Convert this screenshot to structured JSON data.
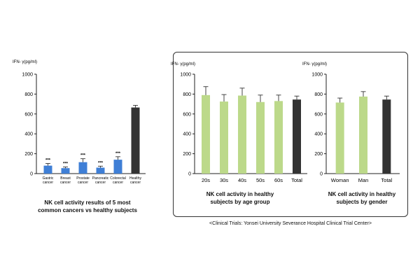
{
  "colors": {
    "blue": "#3f7fd6",
    "green": "#bcd98a",
    "dark": "#333333",
    "frame": "#333333"
  },
  "chart_data": [
    {
      "type": "bar",
      "ylabel": "IFN- γ(pg/ml)",
      "ylim": [
        0,
        1000
      ],
      "yticks": [
        0,
        200,
        400,
        600,
        800,
        1000
      ],
      "categories": [
        "Gastric cancer",
        "Breast cancer",
        "Prostate cancer",
        "Pancreatic cancer",
        "Colorectal cancer",
        "Healthy cancer"
      ],
      "category_lines": [
        [
          "Gastric",
          "cancer"
        ],
        [
          "Breast",
          "cancer"
        ],
        [
          "Prostate",
          "cancer"
        ],
        [
          "Pancreatic",
          "cancer"
        ],
        [
          "Colorectal",
          "cancer"
        ],
        [
          "Healthy",
          "cancer"
        ]
      ],
      "values": [
        80,
        55,
        115,
        60,
        140,
        665
      ],
      "errors": [
        22,
        12,
        35,
        15,
        30,
        22
      ],
      "annotations": [
        "***",
        "***",
        "***",
        "***",
        "***",
        ""
      ],
      "bar_colors": [
        "blue",
        "blue",
        "blue",
        "blue",
        "blue",
        "dark"
      ],
      "caption": [
        "NK cell activity results of 5 most",
        "common cancers vs healthy subjects"
      ]
    },
    {
      "type": "bar",
      "ylabel": "IFN- γ(pg/ml)",
      "ylim": [
        0,
        1000
      ],
      "yticks": [
        0,
        200,
        400,
        600,
        800,
        1000
      ],
      "categories": [
        "20s",
        "30s",
        "40s",
        "50s",
        "60s",
        "Total"
      ],
      "values": [
        790,
        725,
        785,
        720,
        730,
        745
      ],
      "errors": [
        85,
        70,
        75,
        70,
        60,
        35
      ],
      "bar_colors": [
        "green",
        "green",
        "green",
        "green",
        "green",
        "dark"
      ],
      "caption": [
        "NK cell activity in healthy",
        "subjects by age group"
      ]
    },
    {
      "type": "bar",
      "ylabel": "IFN- γ(pg/ml)",
      "ylim": [
        0,
        1000
      ],
      "yticks": [
        0,
        200,
        400,
        600,
        800,
        1000
      ],
      "categories": [
        "Woman",
        "Man",
        "Total"
      ],
      "values": [
        715,
        775,
        745
      ],
      "errors": [
        45,
        50,
        35
      ],
      "bar_colors": [
        "green",
        "green",
        "dark"
      ],
      "caption": [
        "NK cell activity in healthy",
        "subjects by gender"
      ]
    }
  ],
  "footnote": "<Clinical Trials: Yonsei University Severance Hospital Clinical Trial Center>"
}
